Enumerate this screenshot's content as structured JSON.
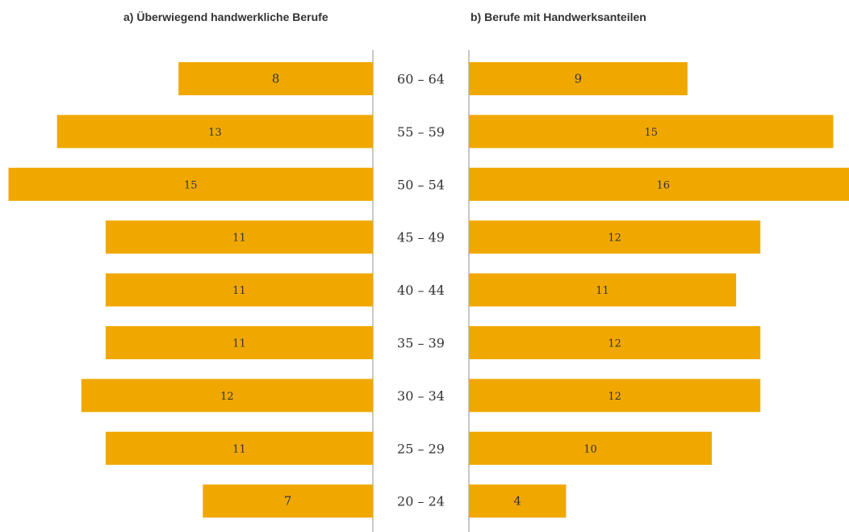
{
  "panels": {
    "left_title": "a) Überwiegend handwerkliche Berufe",
    "right_title": "b) Berufe mit Handwerksanteilen"
  },
  "colors": {
    "bar": "#F0A800",
    "axis_line": "#C8C8C8",
    "label_text": "#333333"
  },
  "chart_data": [
    {
      "type": "bar",
      "orientation": "horizontal",
      "direction": "leftward",
      "title": "a) Überwiegend handwerkliche Berufe",
      "categories": [
        "60 – 64",
        "55 – 59",
        "50 – 54",
        "45 – 49",
        "40 – 44",
        "35 – 39",
        "30 – 34",
        "25 – 29",
        "20 – 24"
      ],
      "values": [
        8,
        13,
        15,
        11,
        11,
        11,
        12,
        11,
        7
      ],
      "xlim": [
        0,
        15
      ],
      "grid": false,
      "data_labels": true
    },
    {
      "type": "bar",
      "orientation": "horizontal",
      "direction": "rightward",
      "title": "b) Berufe mit Handwerksanteilen",
      "categories": [
        "60 – 64",
        "55 – 59",
        "50 – 54",
        "45 – 49",
        "40 – 44",
        "35 – 39",
        "30 – 34",
        "25 – 29",
        "20 – 24"
      ],
      "values": [
        9,
        15,
        16,
        12,
        11,
        12,
        12,
        10,
        4
      ],
      "xlim": [
        0,
        16
      ],
      "grid": false,
      "data_labels": true
    }
  ]
}
